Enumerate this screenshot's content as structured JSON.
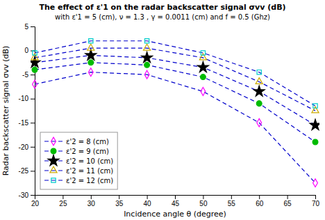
{
  "chart_data": {
    "type": "line",
    "title": "The effect of ε'1 on the radar backscatter signal σvv (dB)",
    "subtitle": "with ε'1 = 5 (cm), ν = 1.3 , γ = 0.0011 (cm) and f = 0.5 (Ghz)",
    "x_label": "Incidence angle θ (degree)",
    "y_label": "Radar backscatter signal σvv (dB)",
    "x": [
      20,
      30,
      40,
      50,
      60,
      70
    ],
    "xlim": [
      20,
      70
    ],
    "ylim": [
      -30,
      5
    ],
    "xticks": [
      20,
      25,
      30,
      35,
      40,
      45,
      50,
      55,
      60,
      65,
      70
    ],
    "yticks": [
      -30,
      -25,
      -20,
      -15,
      -10,
      -5,
      0,
      5
    ],
    "grid": false,
    "legend": "lower left",
    "color": "#0000CC",
    "line_style": "dashed",
    "series": [
      {
        "name": "ε'2 = 8 (cm)",
        "color": "#FF00FF",
        "marker": "diamond",
        "values": [
          -7.0,
          -4.5,
          -5.0,
          -8.5,
          -15.0,
          -27.5
        ]
      },
      {
        "name": "ε'2 = 9 (cm)",
        "color": "#00BB00",
        "marker": "circle",
        "values": [
          -4.0,
          -2.5,
          -3.0,
          -5.5,
          -11.0,
          -19.0
        ]
      },
      {
        "name": "ε'2 = 10 (cm)",
        "color": "#000000",
        "marker": "star",
        "values": [
          -2.5,
          -1.0,
          -1.5,
          -3.5,
          -8.5,
          -15.5
        ]
      },
      {
        "name": "ε'2 = 11 (cm)",
        "color": "#CCAA00",
        "marker": "triangle",
        "values": [
          -1.5,
          0.5,
          0.5,
          -1.5,
          -6.5,
          -12.5
        ]
      },
      {
        "name": "ε'2 = 12 (cm)",
        "color": "#00CCCC",
        "marker": "square",
        "values": [
          -0.5,
          2.0,
          2.0,
          -0.5,
          -4.5,
          -11.5
        ]
      }
    ]
  }
}
